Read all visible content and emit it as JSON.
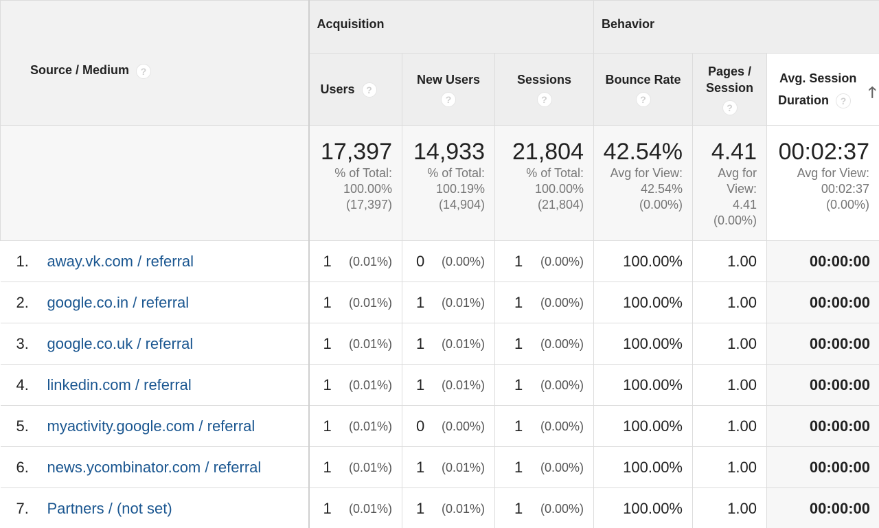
{
  "header": {
    "source_medium": "Source / Medium",
    "group_acquisition": "Acquisition",
    "group_behavior": "Behavior",
    "columns": {
      "users": "Users",
      "new_users": "New Users",
      "sessions": "Sessions",
      "bounce_rate": "Bounce Rate",
      "pages_session_1": "Pages /",
      "pages_session_2": "Session",
      "avg_duration_1": "Avg. Session",
      "avg_duration_2": "Duration"
    },
    "help_glyph": "?",
    "sort_glyph": "🡑"
  },
  "totals": {
    "users": {
      "value": "17,397",
      "l1": "% of Total:",
      "l2": "100.00%",
      "l3": "(17,397)"
    },
    "new_users": {
      "value": "14,933",
      "l1": "% of Total:",
      "l2": "100.19%",
      "l3": "(14,904)"
    },
    "sessions": {
      "value": "21,804",
      "l1": "% of Total:",
      "l2": "100.00%",
      "l3": "(21,804)"
    },
    "bounce_rate": {
      "value": "42.54%",
      "l1": "Avg for View:",
      "l2": "42.54%",
      "l3": "(0.00%)"
    },
    "pages_session": {
      "value": "4.41",
      "l1": "Avg for",
      "l2": "View:",
      "l3": "4.41",
      "l4": "(0.00%)"
    },
    "avg_duration": {
      "value": "00:02:37",
      "l1": "Avg for View:",
      "l2": "00:02:37",
      "l3": "(0.00%)"
    }
  },
  "rows": [
    {
      "index": "1.",
      "source": "away.vk.com / referral",
      "users": "1",
      "users_pct": "(0.01%)",
      "new_users": "0",
      "new_users_pct": "(0.00%)",
      "sessions": "1",
      "sessions_pct": "(0.00%)",
      "bounce_rate": "100.00%",
      "pages_session": "1.00",
      "avg_duration": "00:00:00"
    },
    {
      "index": "2.",
      "source": "google.co.in / referral",
      "users": "1",
      "users_pct": "(0.01%)",
      "new_users": "1",
      "new_users_pct": "(0.01%)",
      "sessions": "1",
      "sessions_pct": "(0.00%)",
      "bounce_rate": "100.00%",
      "pages_session": "1.00",
      "avg_duration": "00:00:00"
    },
    {
      "index": "3.",
      "source": "google.co.uk / referral",
      "users": "1",
      "users_pct": "(0.01%)",
      "new_users": "1",
      "new_users_pct": "(0.01%)",
      "sessions": "1",
      "sessions_pct": "(0.00%)",
      "bounce_rate": "100.00%",
      "pages_session": "1.00",
      "avg_duration": "00:00:00"
    },
    {
      "index": "4.",
      "source": "linkedin.com / referral",
      "users": "1",
      "users_pct": "(0.01%)",
      "new_users": "1",
      "new_users_pct": "(0.01%)",
      "sessions": "1",
      "sessions_pct": "(0.00%)",
      "bounce_rate": "100.00%",
      "pages_session": "1.00",
      "avg_duration": "00:00:00"
    },
    {
      "index": "5.",
      "source": "myactivity.google.com / referral",
      "users": "1",
      "users_pct": "(0.01%)",
      "new_users": "0",
      "new_users_pct": "(0.00%)",
      "sessions": "1",
      "sessions_pct": "(0.00%)",
      "bounce_rate": "100.00%",
      "pages_session": "1.00",
      "avg_duration": "00:00:00"
    },
    {
      "index": "6.",
      "source": "news.ycombinator.com / referral",
      "users": "1",
      "users_pct": "(0.01%)",
      "new_users": "1",
      "new_users_pct": "(0.01%)",
      "sessions": "1",
      "sessions_pct": "(0.00%)",
      "bounce_rate": "100.00%",
      "pages_session": "1.00",
      "avg_duration": "00:00:00"
    },
    {
      "index": "7.",
      "source": "Partners / (not set)",
      "users": "1",
      "users_pct": "(0.01%)",
      "new_users": "1",
      "new_users_pct": "(0.01%)",
      "sessions": "1",
      "sessions_pct": "(0.00%)",
      "bounce_rate": "100.00%",
      "pages_session": "1.00",
      "avg_duration": "00:00:00"
    }
  ]
}
